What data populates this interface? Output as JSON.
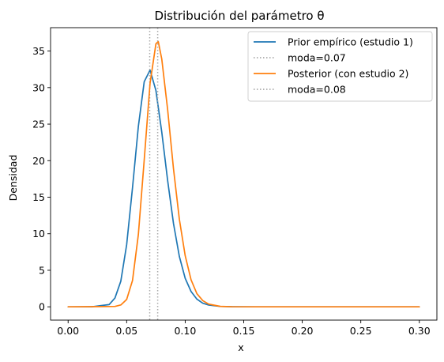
{
  "chart_data": {
    "type": "line",
    "title": "Distribución del parámetro θ",
    "xlabel": "x",
    "ylabel": "Densidad",
    "xlim": [
      -0.015,
      0.315
    ],
    "ylim": [
      -1.82,
      38.2
    ],
    "x_ticks": [
      0.0,
      0.05,
      0.1,
      0.15,
      0.2,
      0.25,
      0.3
    ],
    "x_tick_labels": [
      "0.00",
      "0.05",
      "0.10",
      "0.15",
      "0.20",
      "0.25",
      "0.30"
    ],
    "y_ticks": [
      0,
      5,
      10,
      15,
      20,
      25,
      30,
      35
    ],
    "y_tick_labels": [
      "0",
      "5",
      "10",
      "15",
      "20",
      "25",
      "30",
      "35"
    ],
    "grid": false,
    "legend_position": "top-right",
    "series": [
      {
        "name": "Prior empírico (estudio 1)",
        "color": "#1f77b4",
        "style": "solid",
        "x": [
          0.0,
          0.02,
          0.035,
          0.04,
          0.045,
          0.05,
          0.055,
          0.06,
          0.065,
          0.07,
          0.075,
          0.08,
          0.085,
          0.09,
          0.095,
          0.1,
          0.105,
          0.11,
          0.115,
          0.12,
          0.13,
          0.14,
          0.16,
          0.2,
          0.3
        ],
        "y": [
          0.0,
          0.0,
          0.3,
          1.2,
          3.5,
          8.5,
          16.3,
          24.7,
          30.8,
          32.4,
          29.6,
          23.9,
          17.3,
          11.4,
          6.9,
          3.9,
          2.1,
          1.05,
          0.5,
          0.24,
          0.05,
          0.01,
          0.0,
          0.0,
          0.0
        ]
      },
      {
        "name": "moda=0.07",
        "color": "#aaaaaa",
        "style": "dotted",
        "vline": 0.0697
      },
      {
        "name": "Posterior (con estudio 2)",
        "color": "#ff7f0e",
        "style": "solid",
        "x": [
          0.0,
          0.04,
          0.045,
          0.05,
          0.055,
          0.06,
          0.065,
          0.07,
          0.075,
          0.077,
          0.08,
          0.085,
          0.09,
          0.095,
          0.1,
          0.105,
          0.11,
          0.115,
          0.12,
          0.13,
          0.14,
          0.16,
          0.2,
          0.3
        ],
        "y": [
          0.0,
          0.05,
          0.25,
          1.0,
          3.6,
          9.9,
          20.1,
          30.6,
          36.0,
          36.3,
          33.9,
          27.0,
          18.9,
          12.0,
          7.0,
          3.7,
          1.8,
          0.85,
          0.37,
          0.06,
          0.01,
          0.0,
          0.0,
          0.0
        ]
      },
      {
        "name": "moda=0.08",
        "color": "#aaaaaa",
        "style": "dotted",
        "vline": 0.0765
      }
    ]
  }
}
